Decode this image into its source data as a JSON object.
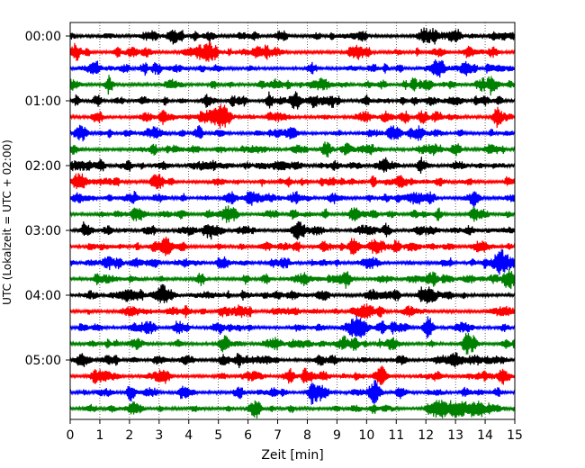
{
  "chart_data": {
    "type": "line",
    "title": "",
    "xlabel": "Zeit  [min]",
    "ylabel": "UTC (Lokalzeit = UTC + 02:00)",
    "xlim": [
      0,
      15
    ],
    "x_ticks": [
      "0",
      "1",
      "2",
      "3",
      "4",
      "5",
      "6",
      "7",
      "8",
      "9",
      "10",
      "11",
      "12",
      "13",
      "14",
      "15"
    ],
    "y_ticks": [
      "00:00",
      "01:00",
      "02:00",
      "03:00",
      "04:00",
      "05:00"
    ],
    "trace_count": 24,
    "trace_interval_min": 15,
    "trace_colors": [
      "#000000",
      "#ff0000",
      "#0000ff",
      "#008000"
    ],
    "grid_vertical": true,
    "grid_style": "dotted",
    "legend": "none"
  }
}
